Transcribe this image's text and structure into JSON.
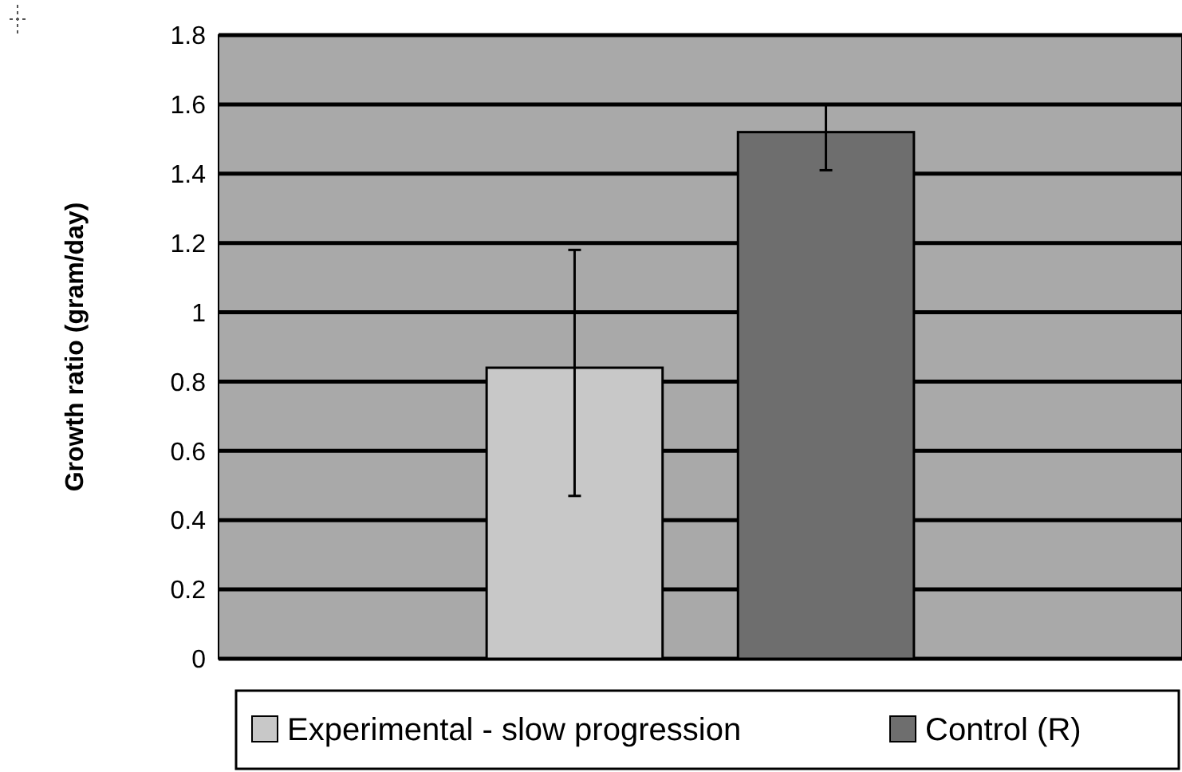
{
  "chart_data": {
    "type": "bar",
    "ylabel": "Growth ratio (gram/day)",
    "categories": [
      null
    ],
    "series": [
      {
        "name": "Experimental - slow progression",
        "color": "#c8c8c8",
        "values": [
          0.84
        ],
        "errors": [
          [
            0.47,
            1.18
          ]
        ]
      },
      {
        "name": "Control (R)",
        "color": "#6e6e6e",
        "values": [
          1.52
        ],
        "errors": [
          [
            1.41,
            1.6
          ]
        ]
      }
    ],
    "ylim": [
      0,
      1.8
    ],
    "yticks": [
      0,
      0.2,
      0.4,
      0.6,
      0.8,
      1,
      1.2,
      1.4,
      1.6,
      1.8
    ],
    "grid": "y",
    "legend": "bottom"
  }
}
